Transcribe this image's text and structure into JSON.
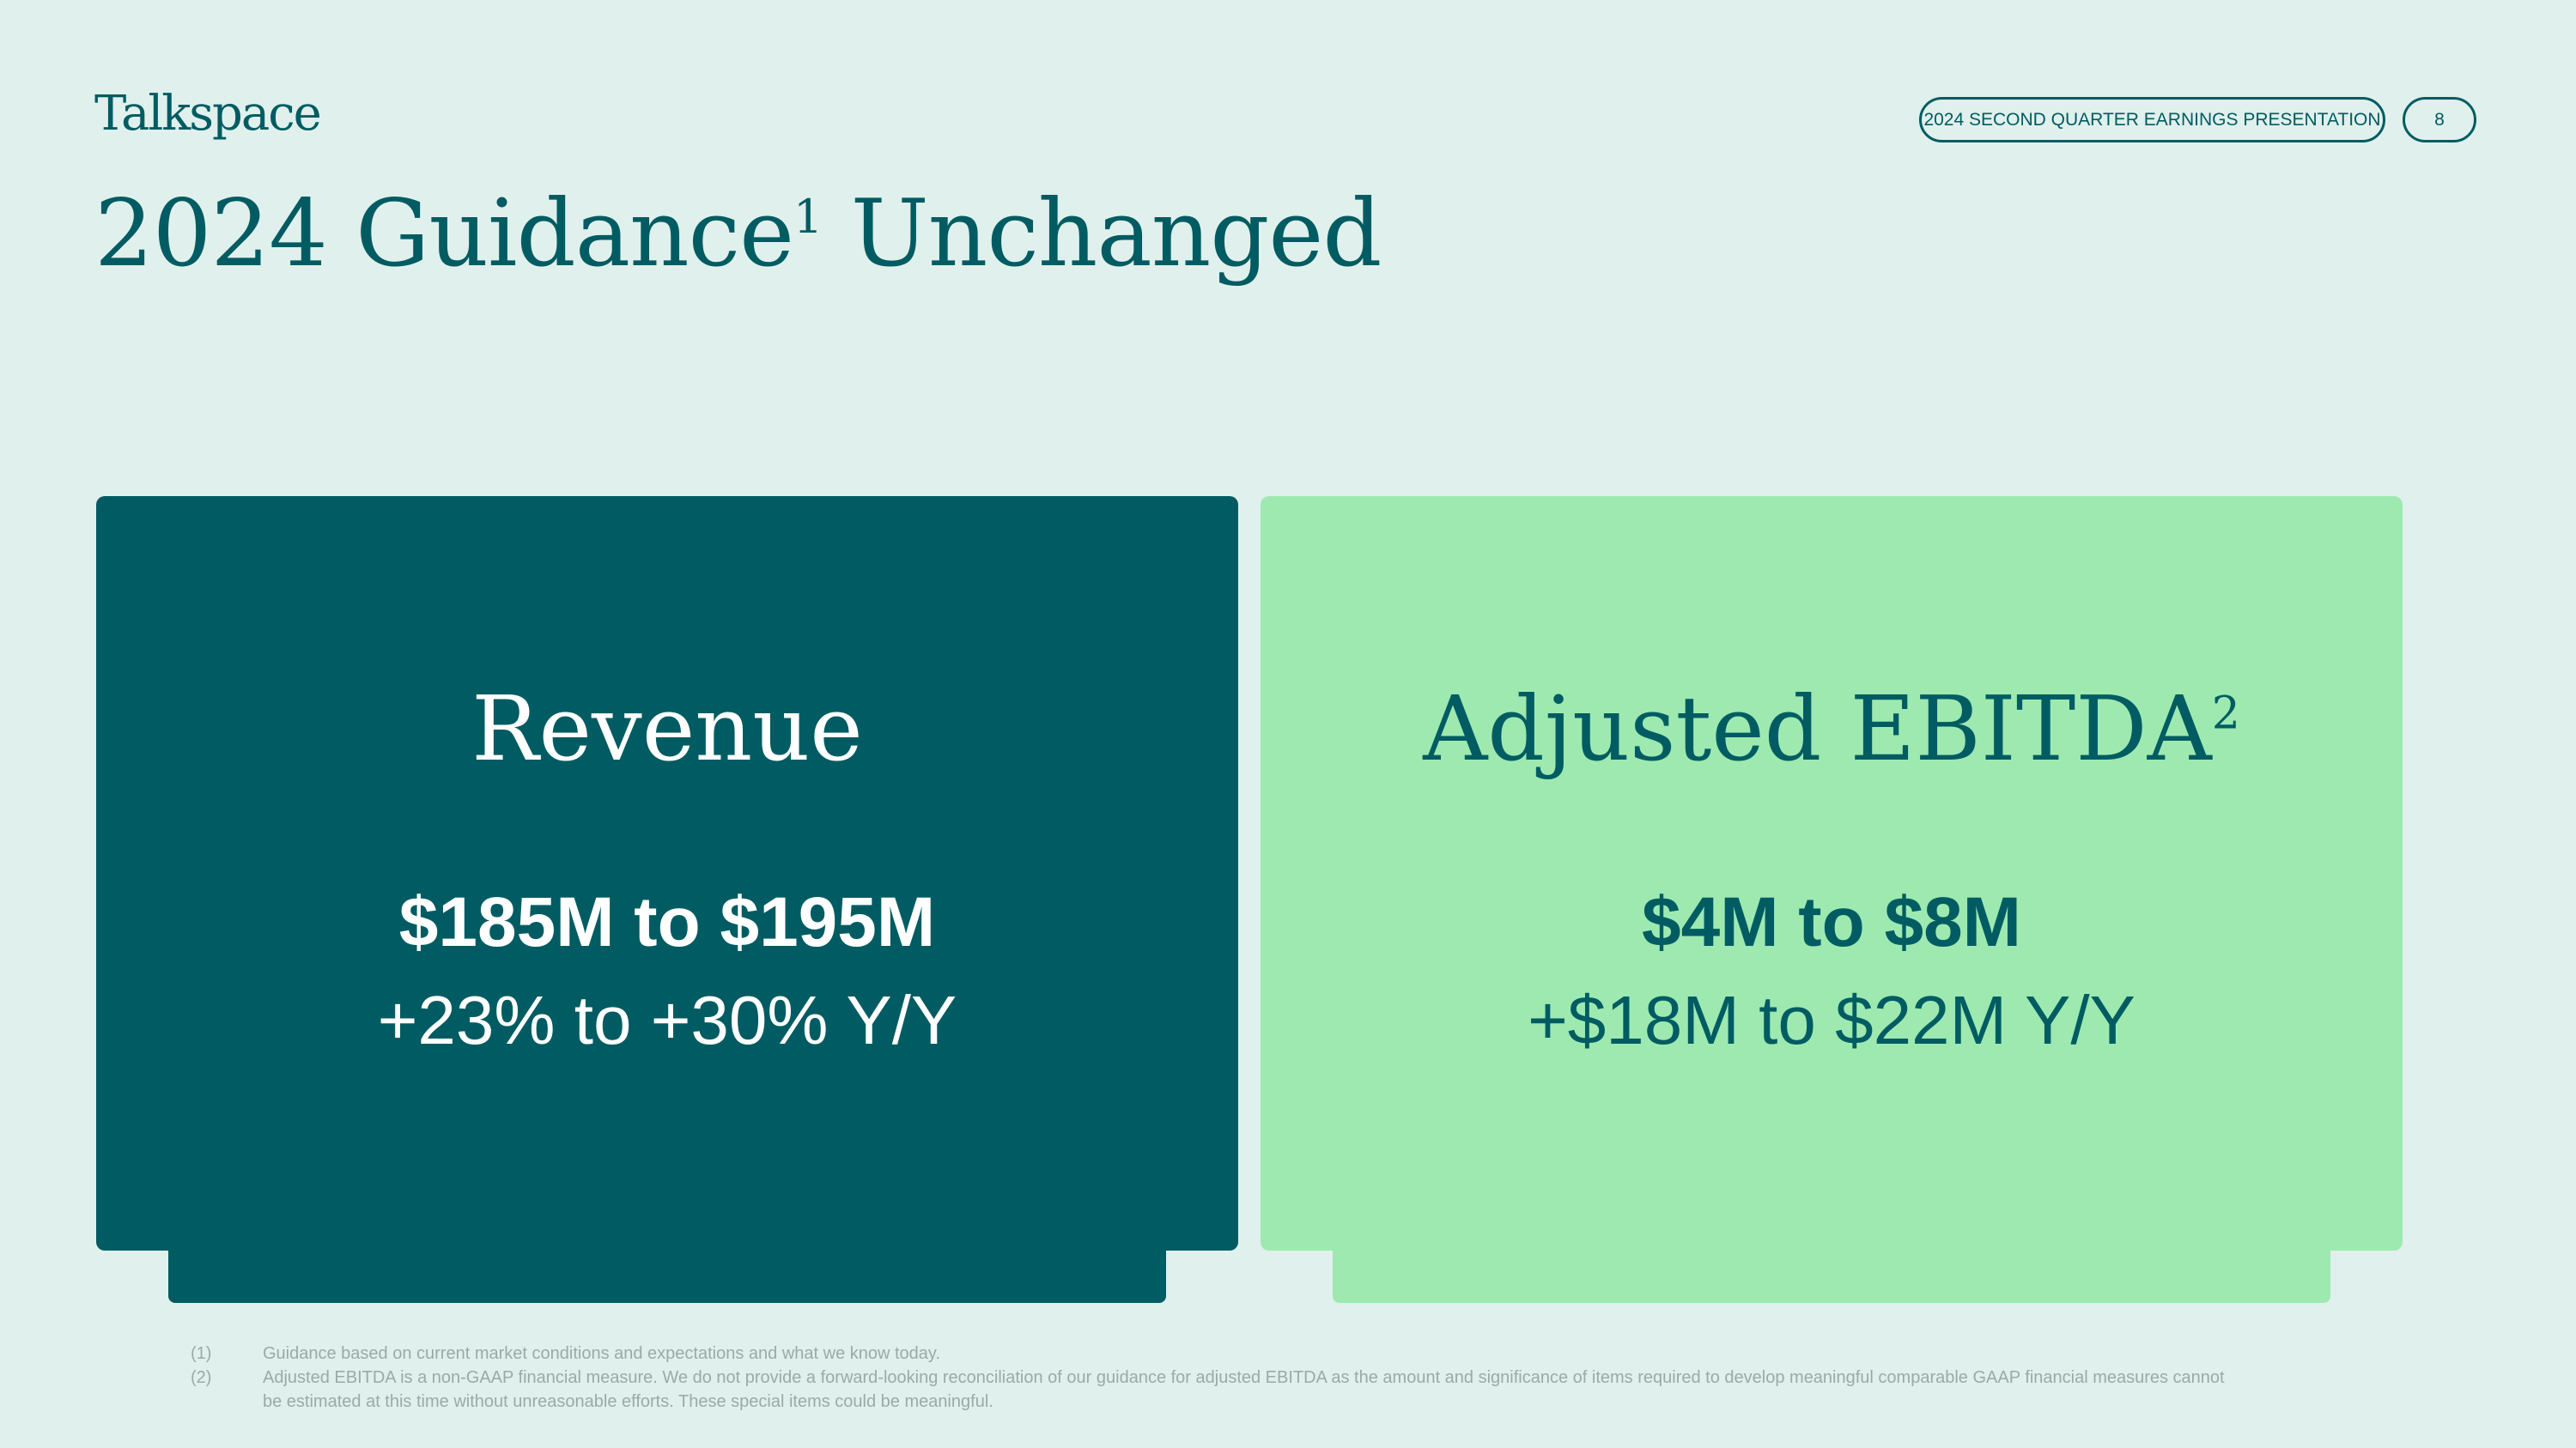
{
  "header": {
    "logo": "Talkspace",
    "presentation": "2024 SECOND QUARTER EARNINGS PRESENTATION",
    "page": "8"
  },
  "title": {
    "text": "2024 Guidance",
    "sup": "1",
    "rest": " Unchanged"
  },
  "cards": [
    {
      "heading": "Revenue",
      "sup": "",
      "value": "$185M to $195M",
      "change": "+23% to +30% Y/Y",
      "bg": "#005c62",
      "fg": "#ffffff"
    },
    {
      "heading": "Adjusted EBITDA",
      "sup": "2",
      "value": "$4M to $8M",
      "change": "+$18M to $22M Y/Y",
      "bg": "#9de9b0",
      "fg": "#005c62"
    }
  ],
  "footnotes": [
    {
      "num": "(1)",
      "text": "Guidance based on current market conditions and expectations and what we know today."
    },
    {
      "num": "(2)",
      "text": "Adjusted EBITDA is a non-GAAP financial measure. We do not provide a forward-looking reconciliation of our guidance for adjusted EBITDA as the amount and significance of items required to develop meaningful comparable GAAP financial measures cannot be estimated at this time without unreasonable efforts. These special items could be meaningful."
    }
  ]
}
